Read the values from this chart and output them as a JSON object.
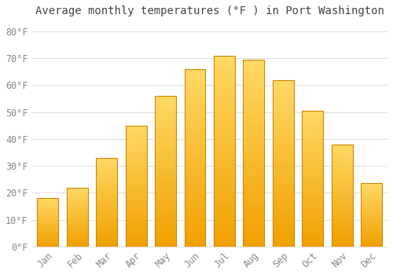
{
  "title": "Average monthly temperatures (°F ) in Port Washington",
  "months": [
    "Jan",
    "Feb",
    "Mar",
    "Apr",
    "May",
    "Jun",
    "Jul",
    "Aug",
    "Sep",
    "Oct",
    "Nov",
    "Dec"
  ],
  "values": [
    18,
    22,
    33,
    45,
    56,
    66,
    71,
    69.5,
    62,
    50.5,
    38,
    23.5
  ],
  "bar_color_face": "#FFBB22",
  "bar_color_edge": "#CC8800",
  "bar_color_gradient_top": "#FFD966",
  "bar_color_gradient_bottom": "#F0A000",
  "background_color": "#FFFFFF",
  "grid_color": "#DDDDDD",
  "tick_label_color": "#888888",
  "title_color": "#444444",
  "ytick_labels": [
    "0°F",
    "10°F",
    "20°F",
    "30°F",
    "40°F",
    "50°F",
    "60°F",
    "70°F",
    "80°F"
  ],
  "ytick_values": [
    0,
    10,
    20,
    30,
    40,
    50,
    60,
    70,
    80
  ],
  "ylim": [
    0,
    84
  ],
  "font_family": "monospace",
  "title_fontsize": 10,
  "tick_fontsize": 8.5,
  "bar_width": 0.72
}
